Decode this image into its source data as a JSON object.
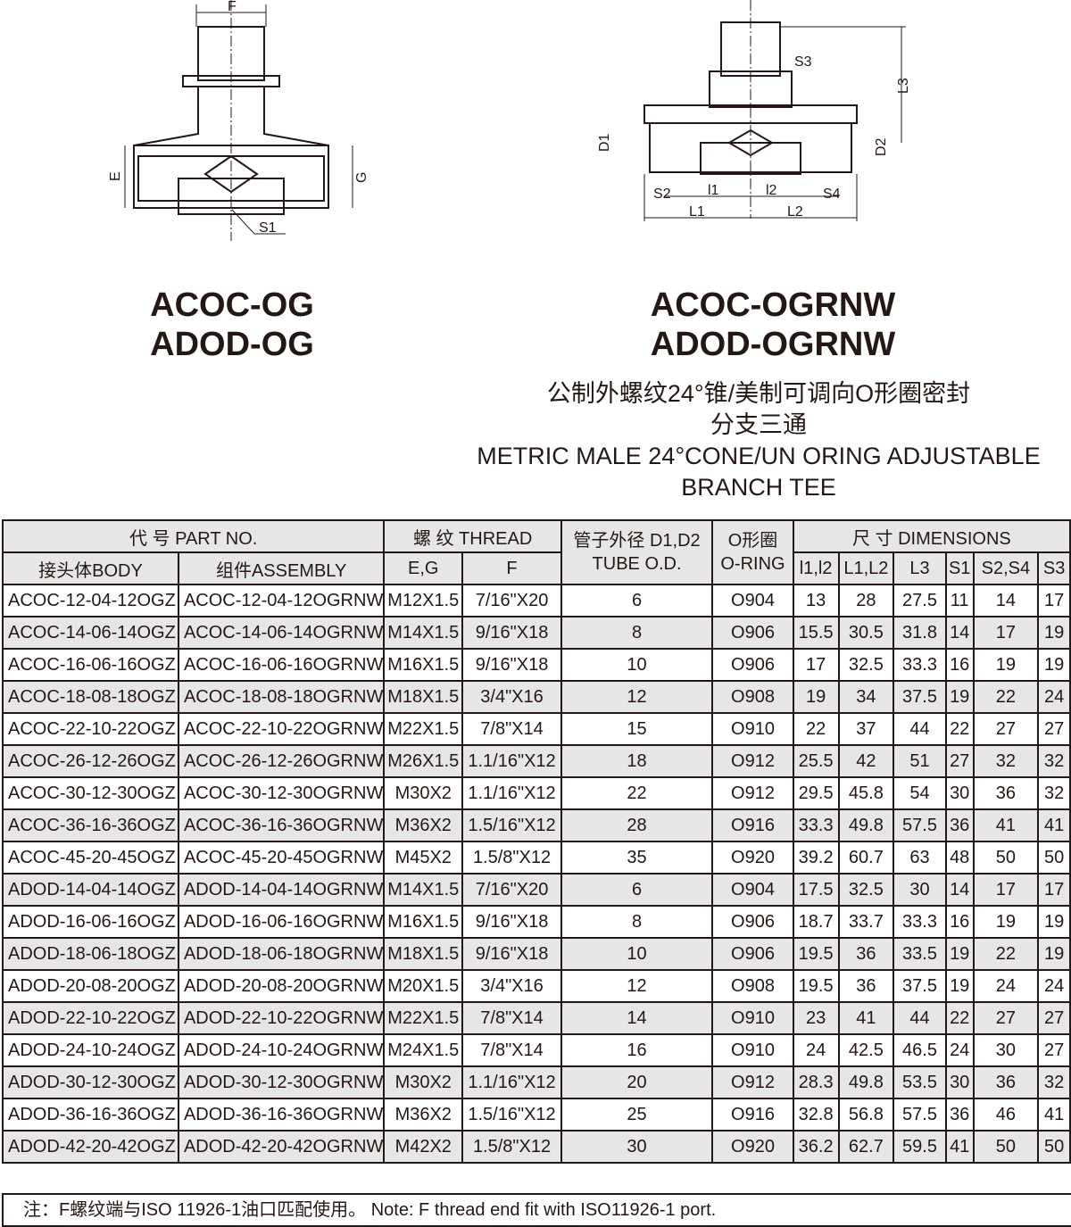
{
  "drawings": {
    "left_labels": [
      "F",
      "E",
      "G",
      "S1"
    ],
    "right_labels": [
      "S3",
      "L3",
      "D1",
      "D2",
      "S2",
      "S4",
      "l1",
      "l2",
      "L1",
      "L2"
    ]
  },
  "models": {
    "left": [
      "ACOC-OG",
      "ADOD-OG"
    ],
    "right": [
      "ACOC-OGRNW",
      "ADOD-OGRNW"
    ]
  },
  "description": {
    "cn_line1": "公制外螺纹24°锥/美制可调向O形圈密封",
    "cn_line2": "分支三通",
    "en_line1": "METRIC MALE 24°CONE/UN ORING ADJUSTABLE",
    "en_line2": "BRANCH TEE"
  },
  "table": {
    "header": {
      "part_no": "代 号 PART  NO.",
      "thread": "螺 纹 THREAD",
      "tube_od": "管子外径 D1,D2",
      "tube_od_en": "TUBE O.D.",
      "oring": "O形圈",
      "oring_en": "O-RING",
      "dimensions": "尺 寸  DIMENSIONS",
      "body": "接头体BODY",
      "assembly": "组件ASSEMBLY",
      "eg": "E,G",
      "f": "F",
      "l1l2": "l1,l2",
      "L1L2": "L1,L2",
      "L3": "L3",
      "S1": "S1",
      "S2S4": "S2,S4",
      "S3": "S3"
    },
    "rows": [
      [
        "ACOC-12-04-12OGZ",
        "ACOC-12-04-12OGRNW",
        "M12X1.5",
        "7/16\"X20",
        "6",
        "O904",
        "13",
        "28",
        "27.5",
        "11",
        "14",
        "17"
      ],
      [
        "ACOC-14-06-14OGZ",
        "ACOC-14-06-14OGRNW",
        "M14X1.5",
        "9/16\"X18",
        "8",
        "O906",
        "15.5",
        "30.5",
        "31.8",
        "14",
        "17",
        "19"
      ],
      [
        "ACOC-16-06-16OGZ",
        "ACOC-16-06-16OGRNW",
        "M16X1.5",
        "9/16\"X18",
        "10",
        "O906",
        "17",
        "32.5",
        "33.3",
        "16",
        "19",
        "19"
      ],
      [
        "ACOC-18-08-18OGZ",
        "ACOC-18-08-18OGRNW",
        "M18X1.5",
        "3/4\"X16",
        "12",
        "O908",
        "19",
        "34",
        "37.5",
        "19",
        "22",
        "24"
      ],
      [
        "ACOC-22-10-22OGZ",
        "ACOC-22-10-22OGRNW",
        "M22X1.5",
        "7/8\"X14",
        "15",
        "O910",
        "22",
        "37",
        "44",
        "22",
        "27",
        "27"
      ],
      [
        "ACOC-26-12-26OGZ",
        "ACOC-26-12-26OGRNW",
        "M26X1.5",
        "1.1/16\"X12",
        "18",
        "O912",
        "25.5",
        "42",
        "51",
        "27",
        "32",
        "32"
      ],
      [
        "ACOC-30-12-30OGZ",
        "ACOC-30-12-30OGRNW",
        "M30X2",
        "1.1/16\"X12",
        "22",
        "O912",
        "29.5",
        "45.8",
        "54",
        "30",
        "36",
        "32"
      ],
      [
        "ACOC-36-16-36OGZ",
        "ACOC-36-16-36OGRNW",
        "M36X2",
        "1.5/16\"X12",
        "28",
        "O916",
        "33.3",
        "49.8",
        "57.5",
        "36",
        "41",
        "41"
      ],
      [
        "ACOC-45-20-45OGZ",
        "ACOC-45-20-45OGRNW",
        "M45X2",
        "1.5/8\"X12",
        "35",
        "O920",
        "39.2",
        "60.7",
        "63",
        "48",
        "50",
        "50"
      ],
      [
        "ADOD-14-04-14OGZ",
        "ADOD-14-04-14OGRNW",
        "M14X1.5",
        "7/16\"X20",
        "6",
        "O904",
        "17.5",
        "32.5",
        "30",
        "14",
        "17",
        "17"
      ],
      [
        "ADOD-16-06-16OGZ",
        "ADOD-16-06-16OGRNW",
        "M16X1.5",
        "9/16\"X18",
        "8",
        "O906",
        "18.7",
        "33.7",
        "33.3",
        "16",
        "19",
        "19"
      ],
      [
        "ADOD-18-06-18OGZ",
        "ADOD-18-06-18OGRNW",
        "M18X1.5",
        "9/16\"X18",
        "10",
        "O906",
        "19.5",
        "36",
        "33.5",
        "19",
        "22",
        "19"
      ],
      [
        "ADOD-20-08-20OGZ",
        "ADOD-20-08-20OGRNW",
        "M20X1.5",
        "3/4\"X16",
        "12",
        "O908",
        "19.5",
        "36",
        "37.5",
        "19",
        "24",
        "24"
      ],
      [
        "ADOD-22-10-22OGZ",
        "ADOD-22-10-22OGRNW",
        "M22X1.5",
        "7/8\"X14",
        "14",
        "O910",
        "23",
        "41",
        "44",
        "22",
        "27",
        "27"
      ],
      [
        "ADOD-24-10-24OGZ",
        "ADOD-24-10-24OGRNW",
        "M24X1.5",
        "7/8\"X14",
        "16",
        "O910",
        "24",
        "42.5",
        "46.5",
        "24",
        "30",
        "27"
      ],
      [
        "ADOD-30-12-30OGZ",
        "ADOD-30-12-30OGRNW",
        "M30X2",
        "1.1/16\"X12",
        "20",
        "O912",
        "28.3",
        "49.8",
        "53.5",
        "30",
        "36",
        "32"
      ],
      [
        "ADOD-36-16-36OGZ",
        "ADOD-36-16-36OGRNW",
        "M36X2",
        "1.5/16\"X12",
        "25",
        "O916",
        "32.8",
        "56.8",
        "57.5",
        "36",
        "46",
        "41"
      ],
      [
        "ADOD-42-20-42OGZ",
        "ADOD-42-20-42OGRNW",
        "M42X2",
        "1.5/8\"X12",
        "30",
        "O920",
        "36.2",
        "62.7",
        "59.5",
        "41",
        "50",
        "50"
      ]
    ]
  },
  "note": "注：F螺纹端与ISO 11926-1油口匹配使用。 Note: F thread end fit with ISO11926-1 port."
}
